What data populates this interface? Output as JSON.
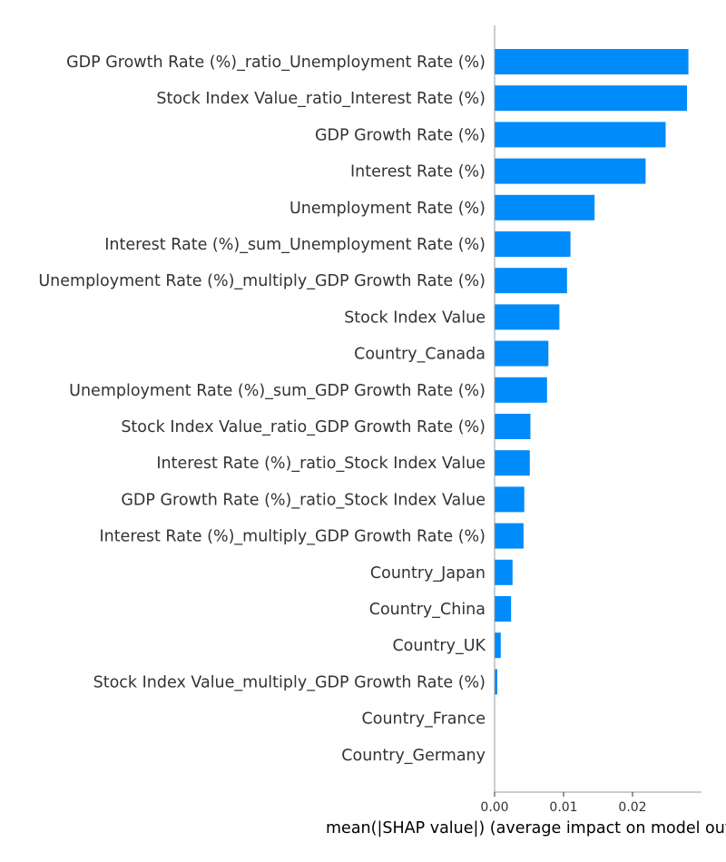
{
  "chart_data": {
    "type": "bar",
    "orientation": "horizontal",
    "title": "",
    "xlabel": "mean(|SHAP value|) (average impact on model output magnitude)",
    "ylabel": "",
    "xlim": [
      0,
      0.0286
    ],
    "x_ticks": [
      0.0,
      0.01,
      0.02
    ],
    "x_tick_labels": [
      "0.00",
      "0.01",
      "0.02"
    ],
    "grid": false,
    "legend": "none",
    "bar_color": "#008bfb",
    "categories": [
      "GDP Growth Rate (%)_ratio_Unemployment Rate (%)",
      "Stock Index Value_ratio_Interest Rate (%)",
      "GDP Growth Rate (%)",
      "Interest Rate (%)",
      "Unemployment Rate (%)",
      "Interest Rate (%)_sum_Unemployment Rate (%)",
      "Unemployment Rate (%)_multiply_GDP Growth Rate (%)",
      "Stock Index Value",
      "Country_Canada",
      "Unemployment Rate (%)_sum_GDP Growth Rate (%)",
      "Stock Index Value_ratio_GDP Growth Rate (%)",
      "Interest Rate (%)_ratio_Stock Index Value",
      "GDP Growth Rate (%)_ratio_Stock Index Value",
      "Interest Rate (%)_multiply_GDP Growth Rate (%)",
      "Country_Japan",
      "Country_China",
      "Country_UK",
      "Stock Index Value_multiply_GDP Growth Rate (%)",
      "Country_France",
      "Country_Germany"
    ],
    "values": [
      0.0281,
      0.0279,
      0.0248,
      0.0219,
      0.0145,
      0.011,
      0.0105,
      0.0094,
      0.0078,
      0.0076,
      0.0052,
      0.0051,
      0.0043,
      0.0042,
      0.0026,
      0.0024,
      0.0009,
      0.0004,
      0.0,
      0.0
    ]
  }
}
